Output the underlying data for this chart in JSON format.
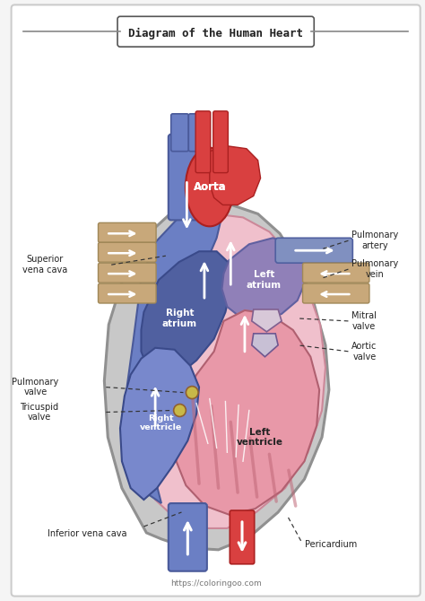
{
  "title": "Diagram of the Human Heart",
  "bg_color": "#f5f5f5",
  "website": "https://coloringoo.com",
  "colors": {
    "border_color": "#cccccc",
    "aorta_red": "#d94040",
    "right_side_blue": "#6b7fc4",
    "right_dark_blue": "#4a5a9a",
    "left_light_pink": "#f0c0cc",
    "pericardium_gray": "#c8c8c8",
    "pulm_vein_tan": "#c8a87a",
    "pulm_artery_blue": "#8090c0",
    "left_atrium_purple": "#9080b8",
    "right_atrium_dark": "#5060a0",
    "ventricle_pink": "#e898a8",
    "muscle_stripe": "#c06878",
    "white": "#ffffff",
    "text_color": "#222222"
  },
  "labels": {
    "superior_vena_cava": "Superior\nvena cava",
    "aorta": "Aorta",
    "pulmonary_artery": "Pulmonary\nartery",
    "pulmonary_vein": "Pulmonary\nvein",
    "left_atrium": "Left\natrium",
    "right_atrium": "Right\natrium",
    "left_ventricle": "Left\nventricle",
    "right_ventricle": "Right\nventricle",
    "mitral_valve": "Mitral\nvalve",
    "aortic_valve": "Aortic\nvalve",
    "pulmonary_valve": "Pulmonary\nvalve",
    "tricuspid_valve": "Tricuspid\nvalve",
    "inferior_vena_cava": "Inferior vena cava",
    "pericardium": "Pericardium"
  }
}
